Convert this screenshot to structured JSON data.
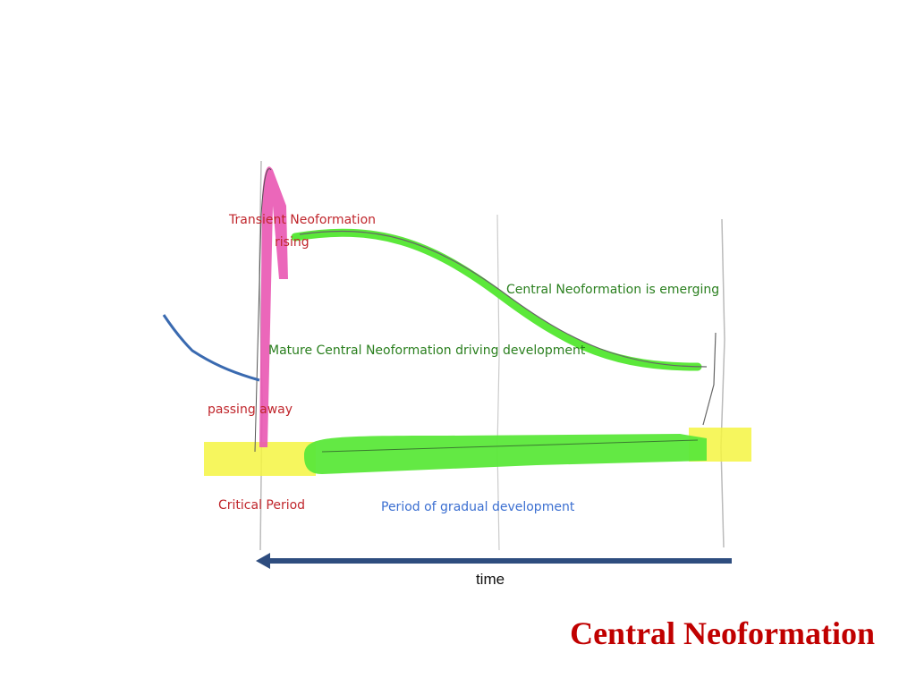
{
  "title": "Central Neoformation",
  "diagram": {
    "labels": {
      "transient_1": "Transient Neoformation",
      "transient_2": "rising",
      "emerging": "Central Neoformation is emerging",
      "mature": "Mature Central Neoformation driving development",
      "passing": "passing away",
      "critical": "Critical Period",
      "gradual": "Period of gradual development",
      "time": "time"
    }
  }
}
